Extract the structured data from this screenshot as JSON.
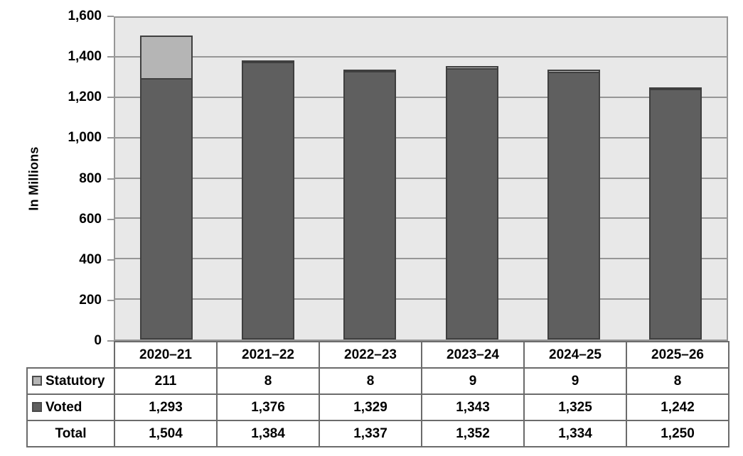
{
  "chart_data": {
    "type": "bar",
    "stacked": true,
    "title": "",
    "xlabel": "",
    "ylabel": "In Millions",
    "ylim": [
      0,
      1600
    ],
    "ytick_interval": 200,
    "ytick_labels": [
      "1,600",
      "1,400",
      "1,200",
      "1,000",
      "800",
      "600",
      "400",
      "200",
      "0"
    ],
    "grid": true,
    "legend_position": "table-left",
    "categories": [
      "2020–21",
      "2021–22",
      "2022–23",
      "2023–24",
      "2024–25",
      "2025–26"
    ],
    "series": [
      {
        "name": "Statutory",
        "color": "#b5b5b5",
        "values": [
          211,
          8,
          8,
          9,
          9,
          8
        ]
      },
      {
        "name": "Voted",
        "color": "#5f5f5f",
        "values": [
          1293,
          1376,
          1329,
          1343,
          1325,
          1242
        ]
      }
    ],
    "totals": {
      "name": "Total",
      "values": [
        1504,
        1384,
        1337,
        1352,
        1334,
        1250
      ]
    },
    "stack_bottom_to_top": [
      "Voted",
      "Statutory"
    ],
    "colors": {
      "plot_background": "#e8e8e8",
      "gridline": "#969696",
      "bar_border": "#3f3f3f",
      "table_border": "#6b6b6b",
      "text": "#000000"
    }
  }
}
